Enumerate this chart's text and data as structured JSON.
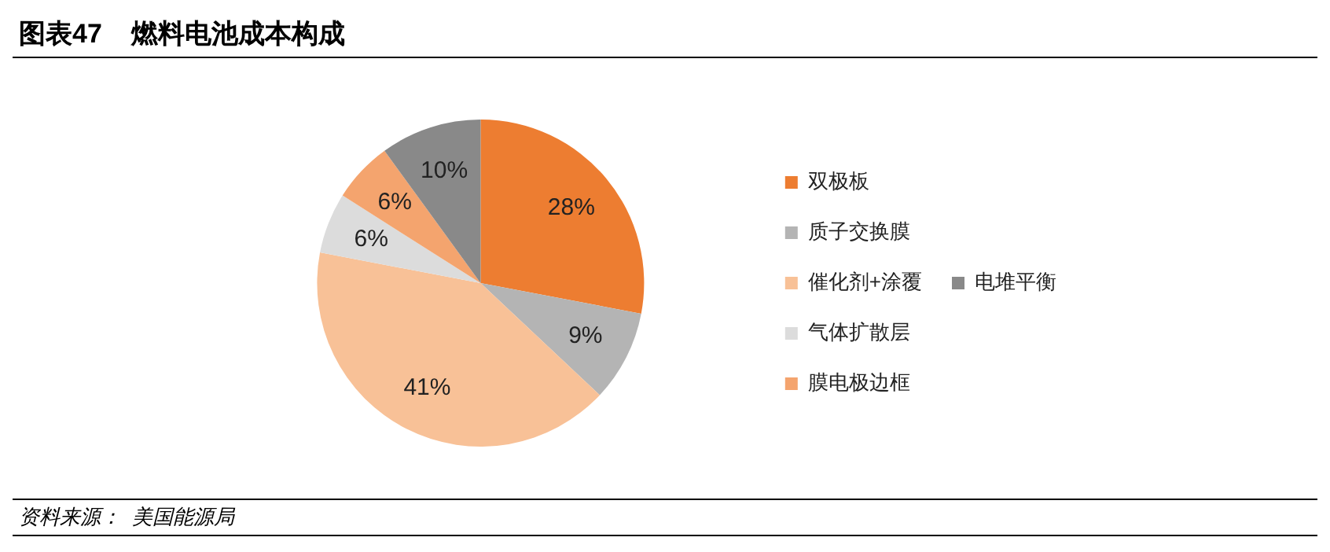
{
  "chart_data": {
    "type": "pie",
    "title": "图表47 燃料电池成本构成",
    "categories": [
      "双极板",
      "质子交换膜",
      "催化剂+涂覆",
      "气体扩散层",
      "膜电极边框",
      "电堆平衡"
    ],
    "values": [
      28,
      9,
      41,
      6,
      6,
      10
    ],
    "colors": [
      "#ed7d31",
      "#b4b4b4",
      "#f8c197",
      "#dcdcdc",
      "#f4a46e",
      "#898989"
    ],
    "value_labels": [
      "28%",
      "9%",
      "41%",
      "6%",
      "6%",
      "10%"
    ],
    "legend": "right",
    "annotations": [
      "资料来源：  美国能源局"
    ]
  }
}
